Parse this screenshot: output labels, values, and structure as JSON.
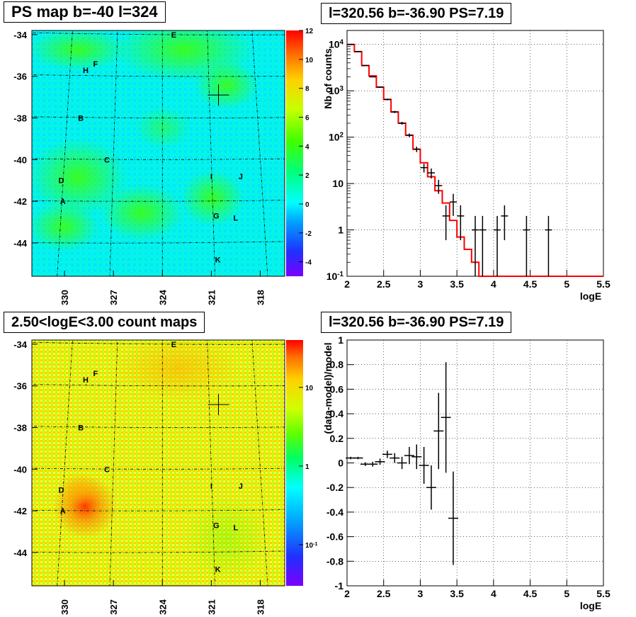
{
  "titles": {
    "tl": "PS map b=-40 l=324",
    "tr": "l=320.56 b=-36.90 PS=7.19",
    "bl": "2.50<logE<3.00 count maps",
    "br": "l=320.56 b=-36.90 PS=7.19"
  },
  "colors": {
    "model_line": "#ff0000",
    "data_points": "#000000",
    "map_low": "#00ffff",
    "map_mid": "#00ff00"
  },
  "chart_data": [
    {
      "type": "heatmap",
      "title": "PS map b=-40 l=324",
      "y_ticks": [
        "-34",
        "-36",
        "-38",
        "-40",
        "-42",
        "-44"
      ],
      "x_ticks": [
        "330",
        "327",
        "324",
        "321",
        "318"
      ],
      "colorbar": {
        "scale": "linear",
        "range": [
          -5,
          12
        ],
        "tick_labels": [
          "12",
          "10",
          "8",
          "6",
          "4",
          "2",
          "0",
          "-2",
          "-4"
        ]
      },
      "sources": [
        {
          "label": "E",
          "l": 323.3,
          "b": -34.0
        },
        {
          "label": "F",
          "l": 328.1,
          "b": -35.4
        },
        {
          "label": "H",
          "l": 328.7,
          "b": -35.7
        },
        {
          "label": "B",
          "l": 329.0,
          "b": -38.0
        },
        {
          "label": "C",
          "l": 327.4,
          "b": -40.0
        },
        {
          "label": "D",
          "l": 330.2,
          "b": -41.0
        },
        {
          "label": "A",
          "l": 330.1,
          "b": -42.0
        },
        {
          "label": "I",
          "l": 321.0,
          "b": -40.8
        },
        {
          "label": "J",
          "l": 319.2,
          "b": -40.8
        },
        {
          "label": "G",
          "l": 320.7,
          "b": -42.7
        },
        {
          "label": "L",
          "l": 319.5,
          "b": -42.8
        },
        {
          "label": "K",
          "l": 320.6,
          "b": -44.8
        }
      ],
      "marker": {
        "l": 320.56,
        "b": -36.9
      }
    },
    {
      "type": "line",
      "title": "l=320.56 b=-36.90 PS=7.19",
      "xlabel": "logE",
      "ylabel": "Nb of counts",
      "yscale": "log",
      "xlim": [
        2,
        5.5
      ],
      "ylim": [
        0.1,
        20000
      ],
      "x_ticks": [
        "2",
        "2.5",
        "3",
        "3.5",
        "4",
        "4.5",
        "5",
        "5.5"
      ],
      "y_ticks": [
        "10^{-1}",
        "1",
        "10",
        "10^{2}",
        "10^{3}",
        "10^{4}"
      ],
      "series": [
        {
          "kind": "step",
          "edges": [
            2.0,
            2.1,
            2.2,
            2.3,
            2.4,
            2.5,
            2.6,
            2.7,
            2.8,
            2.9,
            3.0,
            3.1,
            3.2,
            3.3,
            3.4,
            3.5,
            3.6,
            3.7,
            3.8,
            3.9,
            4.0,
            5.5
          ],
          "values": [
            10000,
            7000,
            3500,
            2100,
            1200,
            650,
            350,
            200,
            110,
            55,
            28,
            14,
            7,
            3.8,
            1.6,
            0.7,
            0.38,
            0.2,
            0.1,
            0.1,
            0.1
          ]
        },
        {
          "kind": "points",
          "x": [
            2.05,
            2.15,
            2.25,
            2.35,
            2.45,
            2.55,
            2.65,
            2.75,
            2.85,
            2.95,
            3.05,
            3.15,
            3.25,
            3.35,
            3.45,
            3.55,
            3.75,
            3.85,
            4.05,
            4.15,
            4.45,
            4.75
          ],
          "y": [
            10000,
            7000,
            3500,
            2000,
            1200,
            650,
            350,
            200,
            110,
            55,
            22,
            17,
            9,
            2,
            4,
            2,
            1,
            1,
            1,
            2,
            1,
            1
          ],
          "yerr": [
            100,
            84,
            59,
            45,
            35,
            25,
            19,
            14,
            10,
            7.4,
            4.7,
            4.1,
            3.0,
            1.4,
            2.0,
            1.4,
            1,
            1,
            1,
            1.4,
            1,
            1
          ]
        }
      ]
    },
    {
      "type": "heatmap",
      "title": "2.50<logE<3.00 count maps",
      "y_ticks": [
        "-34",
        "-36",
        "-38",
        "-40",
        "-42",
        "-44"
      ],
      "x_ticks": [
        "330",
        "327",
        "324",
        "321",
        "318"
      ],
      "colorbar": {
        "scale": "log",
        "range": [
          0.03,
          40
        ],
        "tick_labels": [
          "10",
          "1",
          "10^{-1}"
        ]
      },
      "sources": [
        {
          "label": "E",
          "l": 323.3,
          "b": -34.0
        },
        {
          "label": "F",
          "l": 328.1,
          "b": -35.4
        },
        {
          "label": "H",
          "l": 328.7,
          "b": -35.7
        },
        {
          "label": "B",
          "l": 329.0,
          "b": -38.0
        },
        {
          "label": "C",
          "l": 327.4,
          "b": -40.0
        },
        {
          "label": "D",
          "l": 330.2,
          "b": -41.0
        },
        {
          "label": "A",
          "l": 330.1,
          "b": -42.0
        },
        {
          "label": "I",
          "l": 321.0,
          "b": -40.8
        },
        {
          "label": "J",
          "l": 319.2,
          "b": -40.8
        },
        {
          "label": "G",
          "l": 320.7,
          "b": -42.7
        },
        {
          "label": "L",
          "l": 319.5,
          "b": -42.8
        },
        {
          "label": "K",
          "l": 320.6,
          "b": -44.8
        }
      ],
      "marker": {
        "l": 320.56,
        "b": -36.9
      }
    },
    {
      "type": "scatter",
      "title": "l=320.56 b=-36.90 PS=7.19",
      "xlabel": "logE",
      "ylabel": "(data-model)/model",
      "xlim": [
        2,
        5.5
      ],
      "ylim": [
        -1,
        1
      ],
      "x_ticks": [
        "2",
        "2.5",
        "3",
        "3.5",
        "4",
        "4.5",
        "5",
        "5.5"
      ],
      "y_ticks": [
        "-1",
        "-0.8",
        "-0.6",
        "-0.4",
        "-0.2",
        "0",
        "0.2",
        "0.4",
        "0.6",
        "0.8",
        "1"
      ],
      "series": [
        {
          "x": [
            2.05,
            2.15,
            2.25,
            2.35,
            2.45,
            2.55,
            2.65,
            2.75,
            2.85,
            2.95,
            3.05,
            3.15,
            3.25,
            3.35,
            3.45
          ],
          "y": [
            0.04,
            0.04,
            -0.01,
            -0.01,
            0.01,
            0.07,
            0.04,
            0.0,
            0.06,
            0.05,
            -0.02,
            -0.2,
            0.26,
            0.37,
            -0.45
          ],
          "yerr": [
            0.01,
            0.01,
            0.015,
            0.02,
            0.025,
            0.03,
            0.04,
            0.05,
            0.07,
            0.1,
            0.15,
            0.18,
            0.31,
            0.45,
            0.38
          ]
        }
      ]
    }
  ]
}
